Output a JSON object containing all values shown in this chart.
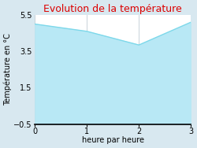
{
  "title": "Evolution de la température",
  "xlabel": "heure par heure",
  "ylabel": "Température en °C",
  "x": [
    0,
    1,
    2,
    3
  ],
  "y": [
    5.0,
    4.6,
    3.85,
    5.1
  ],
  "ylim": [
    -0.5,
    5.5
  ],
  "xlim": [
    0,
    3
  ],
  "xticks": [
    0,
    1,
    2,
    3
  ],
  "yticks": [
    -0.5,
    1.5,
    3.5,
    5.5
  ],
  "line_color": "#7dd8ea",
  "fill_color": "#b8e8f5",
  "title_color": "#dd0000",
  "bg_color": "#d8e8f0",
  "plot_bg_color": "#ffffff",
  "grid_color": "#c0ccd4",
  "title_fontsize": 9,
  "label_fontsize": 7,
  "tick_fontsize": 7
}
